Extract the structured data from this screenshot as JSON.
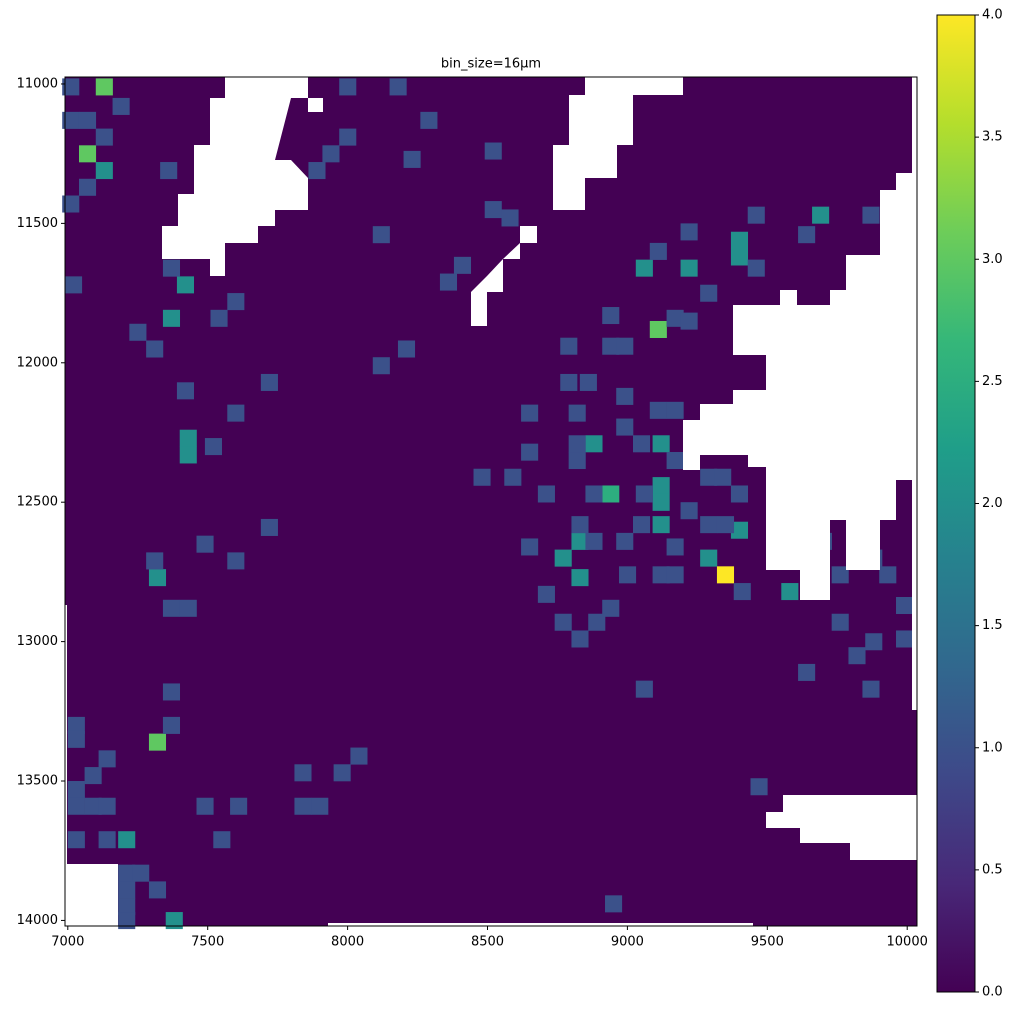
{
  "chart_data": {
    "type": "heatmap",
    "title": "bin_size=16µm",
    "x": [
      7130,
      7710,
      7070,
      7130,
      7710,
      7420,
      7370,
      7430,
      7430,
      9110,
      9400,
      9400,
      9690,
      9060,
      9220,
      8880,
      9120,
      9120,
      9120,
      8940,
      9120,
      8830,
      8770,
      8830,
      9290,
      9400,
      9350,
      9760,
      9820,
      9990,
      9580,
      7320,
      7320,
      7210,
      7380,
      7010,
      7190,
      7010,
      7070,
      7130,
      7360,
      7070,
      7010,
      8000,
      8180,
      8290,
      8000,
      7940,
      7890,
      8230,
      8520,
      8520,
      8580,
      8120,
      8410,
      8360,
      7370,
      7020,
      7600,
      7540,
      7250,
      7310,
      7420,
      7720,
      7600,
      7520,
      8120,
      8210,
      9110,
      9220,
      9460,
      9640,
      9870,
      9290,
      9460,
      8940,
      9170,
      9220,
      9580,
      8790,
      8940,
      8990,
      8790,
      8860,
      8990,
      9110,
      9170,
      8650,
      8820,
      8990,
      9050,
      8820,
      8650,
      8820,
      9170,
      8480,
      8590,
      8710,
      8880,
      9060,
      9290,
      9340,
      9400,
      9220,
      9050,
      9290,
      9350,
      8650,
      8880,
      8990,
      9170,
      8830,
      9000,
      9120,
      9170,
      9410,
      8710,
      8940,
      8770,
      8890,
      8830,
      9700,
      9760,
      9880,
      9930,
      9990,
      9990,
      9880,
      9760,
      9820,
      9640,
      9870,
      9060,
      9470,
      8950,
      7310,
      7490,
      7600,
      7720,
      7370,
      7430,
      7370,
      7370,
      7030,
      7030,
      7140,
      7090,
      7030,
      7030,
      7090,
      7140,
      7490,
      7610,
      7840,
      7840,
      7900,
      7980,
      8040,
      7030,
      7140,
      7550,
      7210,
      7260,
      7320,
      7210,
      7210,
      7210
    ],
    "y": [
      11010,
      11130,
      11250,
      11310,
      11310,
      11720,
      11840,
      12270,
      12330,
      11880,
      11560,
      11620,
      11470,
      11660,
      11660,
      12290,
      12290,
      12440,
      12500,
      12470,
      12580,
      12640,
      12700,
      12770,
      12700,
      12600,
      12760,
      12530,
      12640,
      12340,
      12820,
      12770,
      13360,
      13710,
      14000,
      11010,
      11080,
      11130,
      11130,
      11190,
      11310,
      11370,
      11430,
      11010,
      11010,
      11130,
      11190,
      11250,
      11310,
      11270,
      11240,
      11450,
      11480,
      11540,
      11650,
      11710,
      11660,
      11720,
      11780,
      11840,
      11890,
      11950,
      12100,
      12070,
      12180,
      12300,
      12010,
      11950,
      11600,
      11530,
      11470,
      11540,
      11470,
      11750,
      11660,
      11830,
      11840,
      11850,
      11880,
      11940,
      11940,
      11940,
      12070,
      12070,
      12120,
      12170,
      12170,
      12180,
      12180,
      12230,
      12290,
      12290,
      12320,
      12350,
      12350,
      12410,
      12410,
      12470,
      12470,
      12470,
      12410,
      12410,
      12470,
      12530,
      12580,
      12580,
      12580,
      12660,
      12640,
      12640,
      12660,
      12580,
      12760,
      12760,
      12760,
      12820,
      12830,
      12880,
      12930,
      12930,
      12990,
      12640,
      12760,
      12700,
      12760,
      12870,
      12990,
      13000,
      12930,
      13050,
      13110,
      13170,
      13170,
      13520,
      13940,
      12710,
      12650,
      12710,
      12590,
      12880,
      12880,
      13180,
      13300,
      13300,
      13350,
      13420,
      13480,
      13530,
      13590,
      13590,
      13590,
      13590,
      13590,
      13470,
      13590,
      13590,
      13470,
      13410,
      13710,
      13710,
      13710,
      13830,
      13830,
      13890,
      13890,
      13950,
      14000
    ],
    "values": [
      3,
      2,
      3,
      2,
      2,
      2,
      2,
      2,
      2,
      3,
      2,
      2,
      2,
      2,
      2,
      2,
      2,
      2,
      2,
      2.5,
      2,
      2,
      2,
      2,
      2,
      2,
      4,
      2,
      3,
      2,
      2,
      2,
      3,
      2,
      2,
      1,
      1,
      1,
      1,
      1,
      1,
      1,
      1,
      1,
      1,
      1,
      1,
      1,
      1,
      1,
      1,
      1,
      1,
      1,
      1,
      1,
      1,
      1,
      1,
      1,
      1,
      1,
      1,
      1,
      1,
      1,
      1,
      1,
      1,
      1,
      1,
      1,
      1,
      1,
      1,
      1,
      1,
      1,
      1,
      1,
      1,
      1,
      1,
      1,
      1,
      1,
      1,
      1,
      1,
      1,
      1,
      1,
      1,
      1,
      1,
      1,
      1,
      1,
      1,
      1,
      1,
      1,
      1,
      1,
      1,
      1,
      1,
      1,
      1,
      1,
      1,
      1,
      1,
      1,
      1,
      1,
      1,
      1,
      1,
      1,
      1,
      1,
      1,
      1,
      1,
      1,
      1,
      1,
      1,
      1,
      1,
      1,
      1,
      1,
      1,
      1,
      1,
      1,
      1,
      1,
      1,
      1,
      1,
      1,
      1,
      1,
      1,
      1,
      1,
      1,
      1,
      1,
      1,
      1,
      1,
      1,
      1,
      1,
      1,
      1,
      1,
      1,
      1,
      1,
      1,
      1,
      1
    ],
    "xlim": [
      6990,
      10035
    ],
    "ylim": [
      14020,
      10975
    ],
    "xticks": [
      7000,
      7500,
      8000,
      8500,
      9000,
      9500,
      10000
    ],
    "yticks": [
      11000,
      11500,
      12000,
      12500,
      13000,
      13500,
      14000
    ],
    "clim": [
      0,
      4
    ],
    "cticks": [
      {
        "value": 0,
        "label": "0.0"
      },
      {
        "value": 0.5,
        "label": "0.5"
      },
      {
        "value": 1,
        "label": "1.0"
      },
      {
        "value": 1.5,
        "label": "1.5"
      },
      {
        "value": 2,
        "label": "2.0"
      },
      {
        "value": 2.5,
        "label": "2.5"
      },
      {
        "value": 3,
        "label": "3.0"
      },
      {
        "value": 3.5,
        "label": "3.5"
      },
      {
        "value": 4,
        "label": "4.0"
      }
    ],
    "colormap": "viridis"
  }
}
